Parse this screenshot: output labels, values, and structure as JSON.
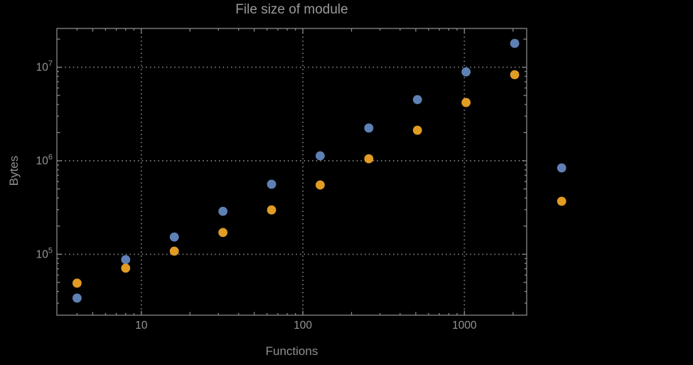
{
  "colors": {
    "background": "#000000",
    "frame": "#878787",
    "grid": "#7f7f7f",
    "tick_label": "#949494",
    "title_text": "#9a9a9a",
    "series_blue": "#5E81B5",
    "series_orange": "#E19C24"
  },
  "chart_data": {
    "type": "scatter",
    "title": "File size of module",
    "xlabel": "Functions",
    "ylabel": "Bytes",
    "x_scale": "log",
    "y_scale": "log",
    "xlim": [
      3.0,
      2430
    ],
    "ylim": [
      22300,
      26000000
    ],
    "grid": "dotted gray lines at major ticks only",
    "legend_position": "none",
    "frame": "full box frame with inward log minor ticks on all four sides",
    "x_ticks": [
      {
        "value": 10,
        "label": "10"
      },
      {
        "value": 100,
        "label": "100"
      },
      {
        "value": 1000,
        "label": "1000"
      }
    ],
    "y_ticks": [
      {
        "value": 100000,
        "base": "10",
        "exponent": "5"
      },
      {
        "value": 1000000,
        "base": "10",
        "exponent": "6"
      },
      {
        "value": 10000000,
        "base": "10",
        "exponent": "7"
      }
    ],
    "x": [
      4,
      8,
      16,
      32,
      64,
      128,
      256,
      512,
      1024,
      2048,
      4000
    ],
    "series": [
      {
        "name": "series-1-blue",
        "color": "#5E81B5",
        "values": [
          34000,
          87700,
          153000,
          288000,
          561000,
          1130000,
          2240000,
          4510000,
          8920000,
          18000000,
          839000
        ]
      },
      {
        "name": "series-2-orange",
        "color": "#E19C24",
        "values": [
          49100,
          71000,
          108000,
          171000,
          298000,
          551000,
          1050000,
          2120000,
          4200000,
          8320000,
          369000
        ]
      }
    ],
    "note_points_outside_frame": "last x pair (~4000) is rendered beyond the right frame edge"
  }
}
